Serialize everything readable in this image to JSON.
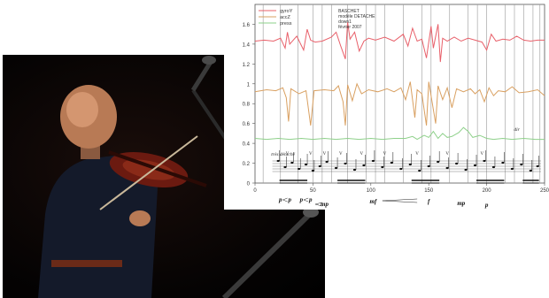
{
  "photo": {
    "subject": "violinist"
  },
  "chart_data": {
    "type": "line",
    "legend_placement": "top-left",
    "grid": true,
    "ylim": [
      0,
      1.8
    ],
    "xlim": [
      0,
      250
    ],
    "y_ticks": [
      "0",
      "0.2",
      "0.4",
      "0.6",
      "0.8",
      "1",
      "1.2",
      "1.4",
      "1.6"
    ],
    "x_ticks": [
      "0",
      "50",
      "100",
      "150",
      "200",
      "250"
    ],
    "x_tick_values": [
      0,
      50,
      100,
      150,
      200,
      250
    ],
    "y_tick_values": [
      0,
      0.2,
      0.4,
      0.6,
      0.8,
      1.0,
      1.2,
      1.4,
      1.6
    ],
    "info_lines": [
      "BASCHET",
      "modèle DETACHE",
      "down1",
      "février 2007"
    ],
    "beat_lines": [
      7,
      22,
      37,
      50,
      58,
      66,
      80,
      96,
      104,
      112,
      128,
      144,
      152,
      168,
      184,
      192,
      200,
      216,
      224,
      232,
      240,
      246
    ],
    "series": [
      {
        "name": "gyroY",
        "color": "#e8606a",
        "points": [
          [
            0,
            1.43
          ],
          [
            8,
            1.44
          ],
          [
            16,
            1.43
          ],
          [
            22,
            1.46
          ],
          [
            26,
            1.36
          ],
          [
            28,
            1.52
          ],
          [
            30,
            1.4
          ],
          [
            36,
            1.48
          ],
          [
            42,
            1.34
          ],
          [
            45,
            1.55
          ],
          [
            48,
            1.44
          ],
          [
            52,
            1.42
          ],
          [
            58,
            1.43
          ],
          [
            66,
            1.47
          ],
          [
            70,
            1.52
          ],
          [
            74,
            1.38
          ],
          [
            78,
            1.25
          ],
          [
            80,
            1.62
          ],
          [
            82,
            1.45
          ],
          [
            86,
            1.52
          ],
          [
            90,
            1.33
          ],
          [
            94,
            1.43
          ],
          [
            98,
            1.46
          ],
          [
            104,
            1.44
          ],
          [
            112,
            1.47
          ],
          [
            120,
            1.43
          ],
          [
            128,
            1.5
          ],
          [
            132,
            1.38
          ],
          [
            136,
            1.56
          ],
          [
            140,
            1.43
          ],
          [
            144,
            1.45
          ],
          [
            148,
            1.26
          ],
          [
            152,
            1.58
          ],
          [
            154,
            1.36
          ],
          [
            158,
            1.6
          ],
          [
            160,
            1.22
          ],
          [
            162,
            1.46
          ],
          [
            166,
            1.43
          ],
          [
            172,
            1.47
          ],
          [
            178,
            1.43
          ],
          [
            184,
            1.46
          ],
          [
            190,
            1.44
          ],
          [
            196,
            1.42
          ],
          [
            200,
            1.34
          ],
          [
            204,
            1.5
          ],
          [
            208,
            1.43
          ],
          [
            214,
            1.45
          ],
          [
            220,
            1.44
          ],
          [
            226,
            1.48
          ],
          [
            232,
            1.44
          ],
          [
            238,
            1.43
          ],
          [
            244,
            1.44
          ],
          [
            250,
            1.44
          ]
        ]
      },
      {
        "name": "accZ",
        "color": "#d9a061",
        "points": [
          [
            0,
            0.92
          ],
          [
            10,
            0.94
          ],
          [
            18,
            0.93
          ],
          [
            24,
            0.96
          ],
          [
            27,
            0.86
          ],
          [
            29,
            0.62
          ],
          [
            31,
            0.95
          ],
          [
            38,
            0.9
          ],
          [
            44,
            0.93
          ],
          [
            48,
            0.58
          ],
          [
            51,
            0.93
          ],
          [
            60,
            0.94
          ],
          [
            68,
            0.93
          ],
          [
            72,
            0.98
          ],
          [
            76,
            0.82
          ],
          [
            78,
            0.58
          ],
          [
            80,
            0.99
          ],
          [
            84,
            0.83
          ],
          [
            88,
            1.0
          ],
          [
            92,
            0.9
          ],
          [
            98,
            0.94
          ],
          [
            106,
            0.92
          ],
          [
            114,
            0.95
          ],
          [
            120,
            0.92
          ],
          [
            126,
            0.96
          ],
          [
            130,
            0.84
          ],
          [
            134,
            1.02
          ],
          [
            138,
            0.66
          ],
          [
            140,
            0.94
          ],
          [
            144,
            0.9
          ],
          [
            148,
            0.58
          ],
          [
            150,
            1.02
          ],
          [
            152,
            0.88
          ],
          [
            156,
            0.6
          ],
          [
            158,
            0.98
          ],
          [
            162,
            0.84
          ],
          [
            166,
            0.96
          ],
          [
            170,
            0.76
          ],
          [
            174,
            0.95
          ],
          [
            180,
            0.92
          ],
          [
            186,
            0.95
          ],
          [
            190,
            0.9
          ],
          [
            194,
            0.94
          ],
          [
            198,
            0.82
          ],
          [
            202,
            0.96
          ],
          [
            206,
            0.88
          ],
          [
            210,
            0.93
          ],
          [
            216,
            0.92
          ],
          [
            222,
            0.97
          ],
          [
            228,
            0.91
          ],
          [
            236,
            0.92
          ],
          [
            244,
            0.94
          ],
          [
            250,
            0.88
          ]
        ]
      },
      {
        "name": "press",
        "color": "#8ed08a",
        "points": [
          [
            0,
            0.45
          ],
          [
            10,
            0.44
          ],
          [
            20,
            0.45
          ],
          [
            30,
            0.44
          ],
          [
            40,
            0.45
          ],
          [
            50,
            0.44
          ],
          [
            60,
            0.45
          ],
          [
            70,
            0.44
          ],
          [
            80,
            0.45
          ],
          [
            90,
            0.44
          ],
          [
            100,
            0.45
          ],
          [
            110,
            0.44
          ],
          [
            120,
            0.45
          ],
          [
            130,
            0.45
          ],
          [
            136,
            0.47
          ],
          [
            140,
            0.44
          ],
          [
            146,
            0.48
          ],
          [
            150,
            0.46
          ],
          [
            154,
            0.52
          ],
          [
            158,
            0.45
          ],
          [
            162,
            0.5
          ],
          [
            166,
            0.46
          ],
          [
            170,
            0.47
          ],
          [
            176,
            0.51
          ],
          [
            180,
            0.56
          ],
          [
            184,
            0.52
          ],
          [
            188,
            0.46
          ],
          [
            194,
            0.48
          ],
          [
            200,
            0.45
          ],
          [
            206,
            0.44
          ],
          [
            214,
            0.45
          ],
          [
            222,
            0.44
          ],
          [
            232,
            0.45
          ],
          [
            242,
            0.44
          ],
          [
            250,
            0.44
          ]
        ]
      }
    ],
    "score": {
      "expression_top": "très détaché",
      "dynamics": [
        "p",
        "p",
        "p",
        "p",
        "mp",
        "mf",
        "f",
        "mp",
        "p"
      ],
      "marks": [
        "V",
        "V",
        "V",
        "V",
        "V",
        "V",
        "V",
        "V",
        "V",
        "dir"
      ]
    }
  }
}
